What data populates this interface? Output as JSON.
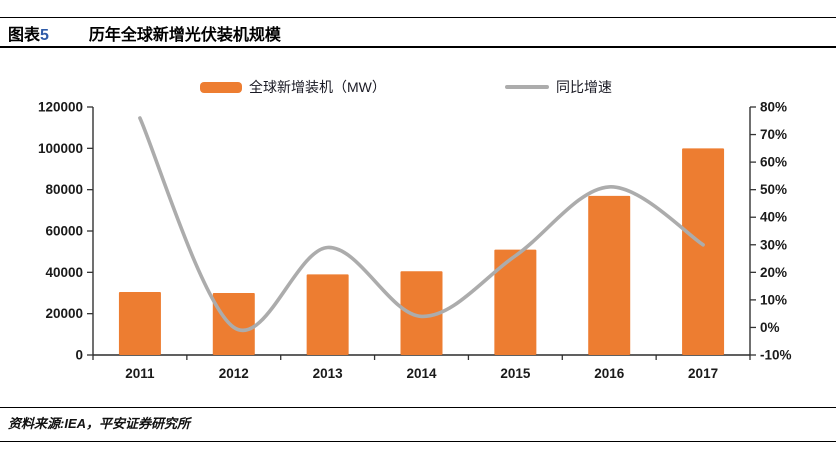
{
  "header": {
    "figure_label": "图表",
    "figure_number": "5",
    "title": "历年全球新增光伏装机规模"
  },
  "legend": [
    {
      "label": "全球新增装机（MW）",
      "type": "bar",
      "color": "#ED7D31"
    },
    {
      "label": "同比增速",
      "type": "line",
      "color": "#ACACAC"
    }
  ],
  "footer": {
    "source": "资料来源:IEA，平安证券研究所"
  },
  "colors": {
    "bar_orange": "#ED7D31",
    "line_gray": "#ACACAC",
    "axis": "#333333",
    "text": "#1a1a1a",
    "figure_number_blue": "#2F5BA8"
  },
  "chart_data": {
    "type": "bar+line combo",
    "title": "历年全球新增光伏装机规模",
    "categories": [
      "2011",
      "2012",
      "2013",
      "2014",
      "2015",
      "2016",
      "2017"
    ],
    "series": [
      {
        "name": "全球新增装机（MW）",
        "type": "bar",
        "axis": "left",
        "color": "#ED7D31",
        "values": [
          30500,
          30000,
          39000,
          40500,
          51000,
          77000,
          100000
        ]
      },
      {
        "name": "同比增速",
        "type": "line",
        "axis": "right",
        "color": "#ACACAC",
        "values_pct": [
          76,
          0,
          29,
          4,
          26,
          51,
          30
        ]
      }
    ],
    "left_axis": {
      "min": 0,
      "max": 120000,
      "step": 20000,
      "ticks": [
        "0",
        "20000",
        "40000",
        "60000",
        "80000",
        "100000",
        "120000"
      ]
    },
    "right_axis": {
      "min": -10,
      "max": 80,
      "step": 10,
      "ticks": [
        "-10%",
        "0%",
        "10%",
        "20%",
        "30%",
        "40%",
        "50%",
        "60%",
        "70%",
        "80%"
      ]
    },
    "grid": false,
    "legend_position": "top",
    "line_smooth": true
  }
}
